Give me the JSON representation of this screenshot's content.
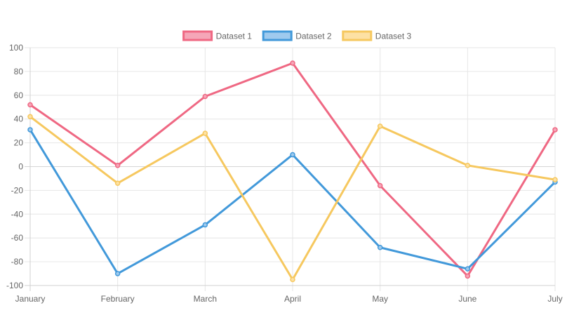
{
  "chart_data": {
    "type": "line",
    "title": "",
    "xlabel": "",
    "ylabel": "",
    "categories": [
      "January",
      "February",
      "March",
      "April",
      "May",
      "June",
      "July"
    ],
    "ylim": [
      -100,
      100
    ],
    "yticks": [
      100,
      80,
      60,
      40,
      20,
      0,
      -20,
      -40,
      -60,
      -80,
      -100
    ],
    "grid": true,
    "legend_position": "top",
    "series": [
      {
        "name": "Dataset 1",
        "color": "#ef6883",
        "fill": "#f5a6b8",
        "values": [
          52,
          1,
          59,
          87,
          -16,
          -92,
          31
        ]
      },
      {
        "name": "Dataset 2",
        "color": "#4299da",
        "fill": "#9fcaee",
        "values": [
          31,
          -90,
          -49,
          10,
          -68,
          -86,
          -13
        ]
      },
      {
        "name": "Dataset 3",
        "color": "#f6c85f",
        "fill": "#fde1a4",
        "values": [
          42,
          -14,
          28,
          -95,
          34,
          1,
          -11
        ]
      }
    ]
  }
}
